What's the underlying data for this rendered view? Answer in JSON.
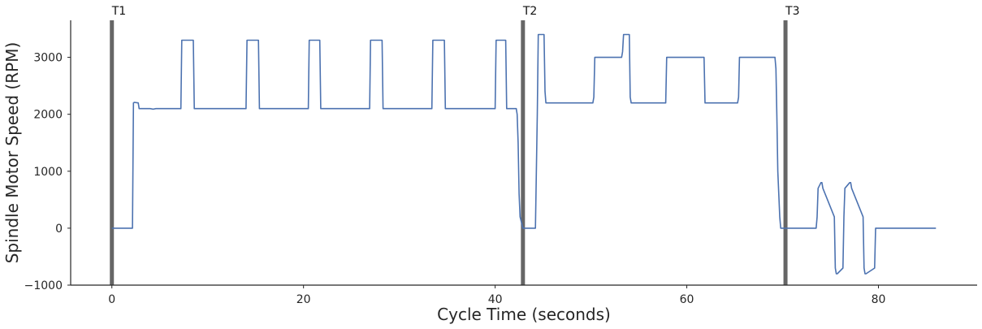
{
  "chart_data": {
    "type": "line",
    "title": "",
    "xlabel": "Cycle Time (seconds)",
    "ylabel": "Spindle Motor Speed (RPM)",
    "xlim": [
      -4.3,
      90.3
    ],
    "ylim": [
      -1000,
      3650
    ],
    "x_ticks": [
      0,
      20,
      40,
      60,
      80
    ],
    "y_ticks": [
      -1000,
      0,
      1000,
      2000,
      3000
    ],
    "x_tick_labels": [
      "0",
      "20",
      "40",
      "60",
      "80"
    ],
    "y_tick_labels": [
      "−1000",
      "0",
      "1000",
      "2000",
      "3000"
    ],
    "grid": false,
    "legend": "none",
    "line_color": "#4c72b0",
    "marker_color": "#666666",
    "markers": [
      {
        "label": "T1",
        "x": 0.0
      },
      {
        "label": "T2",
        "x": 42.9
      },
      {
        "label": "T3",
        "x": 70.3
      }
    ],
    "series": [
      {
        "x": [
          0.0,
          2.15,
          2.25,
          2.35,
          2.75,
          2.85,
          4.0,
          4.3,
          4.6,
          7.2,
          7.3,
          8.5,
          8.6,
          9.0,
          14.0,
          14.1,
          15.3,
          15.4,
          16.0,
          20.5,
          20.6,
          21.7,
          21.8,
          23.0,
          26.9,
          27.0,
          28.2,
          28.3,
          29.5,
          33.4,
          33.5,
          34.7,
          34.8,
          36.0,
          40.0,
          40.1,
          41.1,
          41.2,
          42.0,
          42.2,
          42.3,
          42.4,
          42.5,
          42.6,
          42.9,
          44.2,
          44.4,
          44.5,
          45.1,
          45.2,
          45.3,
          50.2,
          50.3,
          50.4,
          53.2,
          53.3,
          53.4,
          54.0,
          54.1,
          54.2,
          57.8,
          57.9,
          61.8,
          61.9,
          65.3,
          65.4,
          65.5,
          69.2,
          69.3,
          69.4,
          69.5,
          69.6,
          69.7,
          69.8,
          70.3,
          72.5,
          73.5,
          73.6,
          73.7,
          74.0,
          74.1,
          74.2,
          75.4,
          75.5,
          75.6,
          75.7,
          76.3,
          76.4,
          76.5,
          77.0,
          77.1,
          77.2,
          78.4,
          78.5,
          78.6,
          78.7,
          79.6,
          79.7,
          79.8,
          86.0
        ],
        "y": [
          0,
          0,
          2200,
          2210,
          2200,
          2100,
          2100,
          2090,
          2100,
          2100,
          3300,
          3300,
          2100,
          2100,
          2100,
          3300,
          3300,
          2100,
          2100,
          2100,
          3300,
          3300,
          2100,
          2100,
          2100,
          3300,
          3300,
          2100,
          2100,
          2100,
          3300,
          3300,
          2100,
          2100,
          2100,
          3300,
          3300,
          2100,
          2100,
          2100,
          2000,
          1500,
          600,
          200,
          0,
          0,
          2000,
          3400,
          3400,
          2400,
          2200,
          2200,
          2300,
          3000,
          3000,
          3100,
          3400,
          3400,
          2300,
          2200,
          2200,
          3000,
          3000,
          2200,
          2200,
          2300,
          3000,
          3000,
          2800,
          2000,
          1000,
          600,
          200,
          0,
          0,
          0,
          0,
          200,
          700,
          800,
          800,
          700,
          200,
          -700,
          -800,
          -800,
          -700,
          200,
          700,
          800,
          800,
          700,
          200,
          -700,
          -800,
          -800,
          -700,
          0,
          0,
          0
        ]
      }
    ]
  }
}
